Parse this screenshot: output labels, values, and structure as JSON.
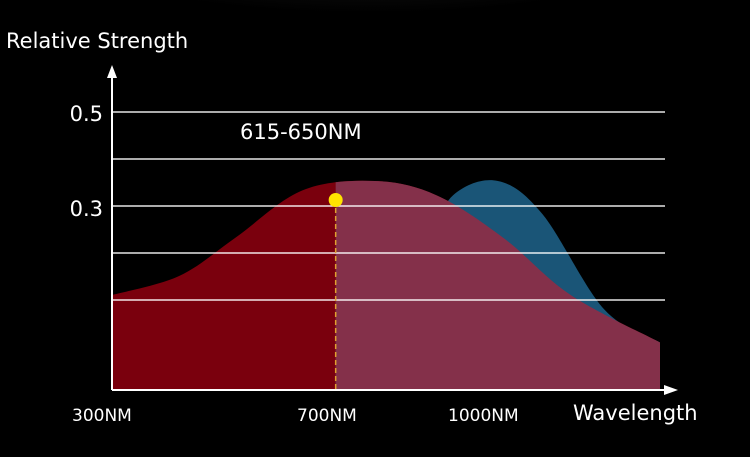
{
  "chart_data": {
    "type": "area",
    "ylabel": "Relative Strength",
    "xlabel": "Wavelength",
    "y_ticks": [
      "0.5",
      "0.3"
    ],
    "x_ticks": [
      "300NM",
      "700NM",
      "1000NM"
    ],
    "annotation": "615-650NM",
    "grid": true,
    "ylim": [
      0,
      0.6
    ],
    "series": [
      {
        "color": "#7a000d",
        "x": [
          300,
          420,
          520,
          640,
          770,
          880,
          1000,
          1120,
          1280
        ],
        "values": [
          0.2,
          0.24,
          0.32,
          0.42,
          0.44,
          0.41,
          0.32,
          0.2,
          0.1
        ]
      },
      {
        "color": "#1a5577",
        "x": [
          700,
          850,
          910,
          990,
          1070,
          1180,
          1280
        ],
        "values": [
          0.2,
          0.3,
          0.41,
          0.44,
          0.37,
          0.17,
          0.1
        ]
      }
    ],
    "overlap_color": "#84304a",
    "highlight_marker_color": "#ffe400",
    "highlight_guide_color": "#e0a030",
    "highlight_point": {
      "x": 700,
      "y": 0.4
    }
  }
}
